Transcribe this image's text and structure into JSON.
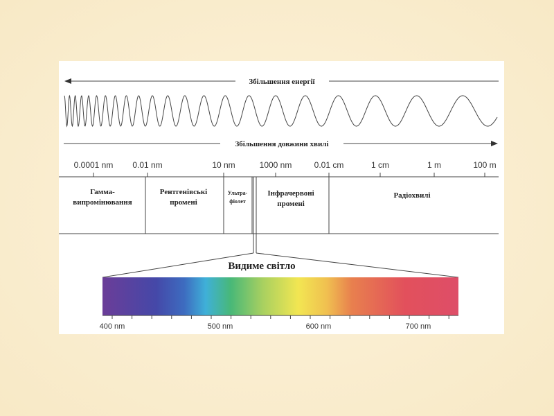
{
  "arrows": {
    "energy": "Збільшення енергії",
    "wavelength": "Збільшення довжини хвилі"
  },
  "scale": [
    "0.0001 nm",
    "0.01 nm",
    "10 nm",
    "1000 nm",
    "0.01 cm",
    "1 cm",
    "1 m",
    "100 m"
  ],
  "regions": [
    {
      "lines": [
        "Гамма-",
        "випромінювання"
      ]
    },
    {
      "lines": [
        "Рентгенівські",
        "промені"
      ]
    },
    {
      "lines": [
        "Ультра-",
        "фіолет"
      ]
    },
    {
      "lines": [
        "Інфрачервоні",
        "промені"
      ]
    },
    {
      "lines": [
        "Радіохвилі"
      ]
    }
  ],
  "visible": {
    "title": "Видиме світло",
    "ticks": [
      "400 nm",
      "500 nm",
      "600 nm",
      "700 nm"
    ]
  }
}
